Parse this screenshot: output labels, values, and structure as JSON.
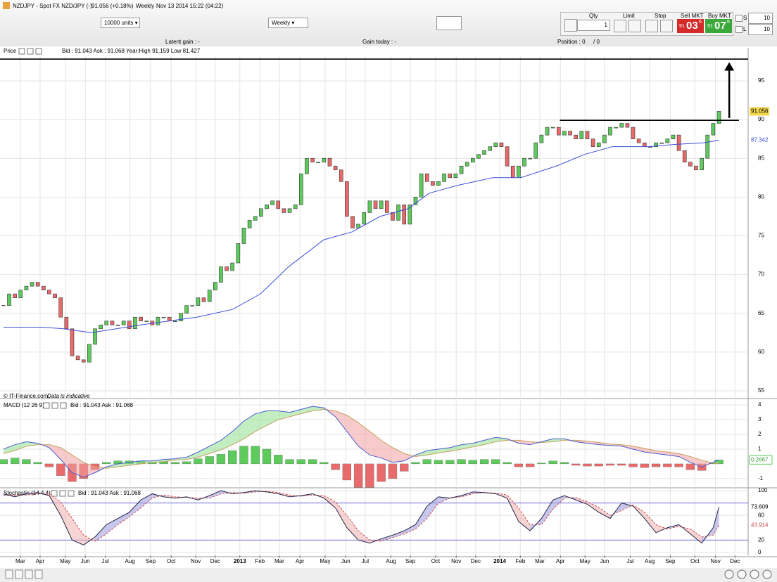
{
  "toolbar": {
    "symbol": "NZDJPY - Spot FX NZD/JPY (-)",
    "quote": "91.056 (+0.18%)",
    "period": "Weekly",
    "time": "Nov 13 2014 15:22 (04:22)",
    "units": "10000 units",
    "period_select": "Weekly",
    "qty_label": "Qty",
    "qty": "1",
    "limit": "Limit",
    "stop": "Stop",
    "sell": {
      "label": "Sell MKT",
      "big": "91",
      "pips": "03",
      "frac": "6"
    },
    "buy": {
      "label": "Buy MKT",
      "big": "91",
      "pips": "07",
      "frac": "6"
    },
    "s_label": "S",
    "s_value": "10",
    "l_label": "L",
    "l_value": "10"
  },
  "info_bar": {
    "latent": "Latent gain : -",
    "gain_today": "Gain today : -",
    "position": "Position : 0",
    "position_total": "/ 0"
  },
  "chart_data": [
    {
      "type": "candlestick",
      "title": "Price",
      "subtitle": "Bid : 91.043 Ask : 91.068 Year:High 91.159 Low 81.427",
      "source": "© IT-Finance.com",
      "note": "Data is indicative",
      "values": [
        66,
        67.5,
        67,
        68,
        68.5,
        69,
        68.5,
        68,
        67.5,
        67,
        64.5,
        63,
        59.5,
        59,
        58.7,
        61,
        63,
        63.5,
        64,
        63.5,
        63.5,
        64,
        63,
        64.5,
        64,
        64,
        63.5,
        64.5,
        64.5,
        64,
        64,
        65,
        66,
        66,
        67,
        66.5,
        68,
        69,
        71,
        70.5,
        71.5,
        74,
        76,
        77,
        77.5,
        78.5,
        79,
        79.5,
        78.5,
        78,
        78.5,
        79,
        83,
        85,
        84.5,
        84.5,
        85,
        84,
        83.5,
        82,
        77.5,
        76,
        76.5,
        78,
        79.5,
        78.5,
        79.5,
        78,
        77,
        79,
        76.5,
        79,
        80,
        83,
        82,
        81.5,
        82,
        83,
        82.5,
        83,
        84,
        84.5,
        85,
        85.5,
        86,
        86.5,
        87,
        86.5,
        84,
        82.5,
        84,
        85,
        85,
        87,
        88,
        89,
        89,
        88,
        88.5,
        88,
        87.5,
        88.5,
        87.5,
        86.5,
        87,
        88,
        89,
        89,
        89.5,
        89,
        87.5,
        87,
        86.5,
        86.5,
        87,
        87,
        87.5,
        88,
        86,
        84.5,
        84,
        83.5,
        85,
        88,
        89.5,
        91.056
      ],
      "last": 91.056,
      "up_color": "#5ccb5c",
      "down_color": "#e86a6a",
      "ma": {
        "color": "#3b4fd8",
        "x": [
          0,
          6.8,
          10.5,
          15.4,
          24,
          33.8,
          40,
          44.9,
          49.8,
          56,
          60.9,
          65.8,
          70.7,
          74.4,
          79.3,
          85.5,
          90.4,
          96.6,
          101.5,
          106.4,
          112.6,
          117.5,
          122.4,
          125
        ],
        "values": [
          63.2,
          63.2,
          63,
          62.5,
          63.5,
          64.5,
          65.5,
          67.5,
          71,
          74.5,
          75.5,
          77.5,
          78.5,
          80.5,
          81.5,
          82.5,
          82.5,
          84,
          85.5,
          86.5,
          86.5,
          86.8,
          87,
          87.342
        ]
      },
      "levels": [
        {
          "value": 89.9,
          "from": 97.2,
          "to": 128.5
        },
        {
          "value": 97.8,
          "from": -0.6,
          "to": 130.1
        }
      ],
      "arrow": {
        "x": 126.8,
        "from": 90.2,
        "to": 97.4
      },
      "ylim": [
        54.18,
        98.17
      ],
      "yticks": [
        55,
        60,
        65,
        70,
        75,
        80,
        85,
        90,
        95
      ],
      "grid": true
    },
    {
      "type": "macd",
      "title": "MACD (12 26 9)",
      "subtitle": "Bid : 91.043 Ask : 91.068",
      "x": [
        0,
        2,
        4,
        6,
        8,
        10,
        12,
        14,
        16,
        18,
        20,
        22,
        24,
        26,
        28,
        30,
        32,
        34,
        36,
        38,
        40,
        42,
        44,
        46,
        48,
        50,
        52,
        54,
        56,
        58,
        60,
        62,
        64,
        66,
        68,
        70,
        72,
        74,
        76,
        78,
        80,
        82,
        84,
        86,
        88,
        90,
        92,
        94,
        96,
        98,
        100,
        102,
        104,
        106,
        108,
        110,
        112,
        114,
        116,
        118,
        120,
        122,
        124,
        125
      ],
      "macd": {
        "color": "#4a5ad0",
        "values": [
          1.0,
          1.3,
          1.5,
          1.4,
          1.1,
          0.3,
          -0.6,
          -0.9,
          -0.6,
          -0.2,
          0.0,
          0.1,
          0.2,
          0.2,
          0.3,
          0.35,
          0.45,
          0.8,
          1.2,
          1.6,
          2.2,
          2.9,
          3.4,
          3.6,
          3.6,
          3.5,
          3.7,
          3.9,
          3.8,
          3.2,
          2.2,
          1.2,
          0.6,
          0.4,
          0.1,
          0.2,
          0.6,
          0.9,
          1.0,
          1.1,
          1.3,
          1.4,
          1.6,
          1.8,
          1.7,
          1.4,
          1.3,
          1.5,
          1.7,
          1.7,
          1.5,
          1.4,
          1.3,
          1.25,
          1.2,
          1.0,
          0.8,
          0.7,
          0.6,
          0.5,
          0.1,
          -0.2,
          0.1,
          0.2667
        ]
      },
      "signal": {
        "color": "#c9a060",
        "values": [
          0.7,
          0.9,
          1.2,
          1.3,
          1.3,
          1.1,
          0.6,
          0.1,
          -0.2,
          -0.3,
          -0.2,
          -0.1,
          0.0,
          0.1,
          0.15,
          0.25,
          0.3,
          0.45,
          0.7,
          0.95,
          1.3,
          1.7,
          2.2,
          2.6,
          3.0,
          3.2,
          3.4,
          3.6,
          3.7,
          3.6,
          3.3,
          2.8,
          2.2,
          1.6,
          1.1,
          0.7,
          0.5,
          0.6,
          0.75,
          0.85,
          1.0,
          1.15,
          1.3,
          1.5,
          1.6,
          1.6,
          1.5,
          1.45,
          1.5,
          1.6,
          1.6,
          1.55,
          1.45,
          1.35,
          1.3,
          1.2,
          1.05,
          0.9,
          0.8,
          0.7,
          0.5,
          0.25,
          0.05,
          0.0
        ]
      },
      "histogram": {
        "up_color": "#5ccb5c",
        "down_color": "#e86a6a",
        "values": [
          0.3,
          0.4,
          0.3,
          0.1,
          -0.2,
          -0.8,
          -1.2,
          -1.0,
          -0.4,
          0.1,
          0.2,
          0.2,
          0.2,
          0.1,
          0.15,
          0.1,
          0.15,
          0.35,
          0.5,
          0.65,
          0.9,
          1.2,
          1.2,
          1.0,
          0.6,
          0.3,
          0.3,
          0.3,
          0.1,
          -0.4,
          -1.1,
          -1.6,
          -1.6,
          -1.2,
          -1.0,
          -0.5,
          0.1,
          0.3,
          0.25,
          0.25,
          0.3,
          0.25,
          0.3,
          0.3,
          0.1,
          -0.2,
          -0.2,
          0.05,
          0.2,
          0.1,
          -0.1,
          -0.15,
          -0.15,
          -0.1,
          -0.1,
          -0.2,
          -0.25,
          -0.2,
          -0.2,
          -0.2,
          -0.4,
          -0.45,
          0.05,
          0.2667
        ]
      },
      "ylim": [
        -1.53,
        4.29
      ],
      "yticks": [
        -1,
        1,
        2,
        3,
        4
      ],
      "grid": true
    },
    {
      "type": "stochastic",
      "title": "Stochastic (14 4 4)",
      "subtitle": "Bid : 91.043 Ask : 91.068",
      "x": [
        0,
        2,
        4,
        6,
        8,
        10,
        12,
        14,
        16,
        18,
        20,
        22,
        24,
        26,
        28,
        30,
        32,
        34,
        36,
        38,
        40,
        42,
        44,
        46,
        48,
        50,
        52,
        54,
        56,
        58,
        60,
        62,
        64,
        66,
        68,
        70,
        72,
        74,
        76,
        78,
        80,
        82,
        84,
        86,
        88,
        90,
        92,
        94,
        96,
        98,
        100,
        102,
        104,
        106,
        108,
        110,
        112,
        114,
        116,
        118,
        120,
        122,
        124,
        125
      ],
      "k": {
        "color": "#222244",
        "values": [
          95,
          90,
          95,
          97,
          92,
          60,
          20,
          12,
          25,
          45,
          55,
          65,
          85,
          95,
          90,
          88,
          90,
          85,
          92,
          100,
          95,
          97,
          100,
          98,
          95,
          90,
          92,
          95,
          88,
          72,
          40,
          20,
          15,
          22,
          28,
          35,
          45,
          75,
          90,
          88,
          92,
          98,
          97,
          95,
          88,
          50,
          35,
          55,
          85,
          92,
          85,
          78,
          65,
          55,
          80,
          75,
          55,
          32,
          40,
          45,
          30,
          15,
          40,
          73.609
        ]
      },
      "d": {
        "color": "#d05050",
        "values": [
          92,
          93,
          93,
          95,
          95,
          82,
          55,
          28,
          18,
          30,
          45,
          58,
          72,
          88,
          93,
          90,
          89,
          88,
          88,
          95,
          97,
          96,
          98,
          99,
          97,
          93,
          91,
          93,
          92,
          82,
          60,
          35,
          20,
          18,
          24,
          30,
          38,
          55,
          80,
          88,
          90,
          95,
          97,
          96,
          93,
          72,
          45,
          45,
          70,
          88,
          89,
          82,
          73,
          60,
          68,
          77,
          65,
          45,
          38,
          42,
          38,
          25,
          28,
          43.914
        ]
      },
      "levels": [
        80,
        20
      ],
      "ylim": [
        -4.7,
        103.5
      ],
      "yticks": [
        0,
        20,
        60,
        100
      ],
      "grid": true,
      "xlim": [
        -0.6,
        130.1
      ],
      "xticks": [
        {
          "value": 2.95,
          "label": "Mar"
        },
        {
          "value": 6.4,
          "label": "Apr"
        },
        {
          "value": 10.8,
          "label": "May"
        },
        {
          "value": 14.3,
          "label": "Jun"
        },
        {
          "value": 17.8,
          "label": "Jul"
        },
        {
          "value": 22.1,
          "label": "Aug"
        },
        {
          "value": 25.7,
          "label": "Sep"
        },
        {
          "value": 29.3,
          "label": "Oct"
        },
        {
          "value": 33.6,
          "label": "Nov"
        },
        {
          "value": 37.0,
          "label": "Dec"
        },
        {
          "value": 41.3,
          "label": "2013"
        },
        {
          "value": 44.8,
          "label": "Feb"
        },
        {
          "value": 48.2,
          "label": "Mar"
        },
        {
          "value": 51.8,
          "label": "Apr"
        },
        {
          "value": 56.2,
          "label": "May"
        },
        {
          "value": 59.8,
          "label": "Jun"
        },
        {
          "value": 63.2,
          "label": "Jul"
        },
        {
          "value": 67.7,
          "label": "Aug"
        },
        {
          "value": 71.1,
          "label": "Sep"
        },
        {
          "value": 75.5,
          "label": "Oct"
        },
        {
          "value": 79.1,
          "label": "Nov"
        },
        {
          "value": 82.5,
          "label": "Dec"
        },
        {
          "value": 86.7,
          "label": "2014"
        },
        {
          "value": 90.3,
          "label": "Feb"
        },
        {
          "value": 93.7,
          "label": "Mar"
        },
        {
          "value": 97.3,
          "label": "Apr"
        },
        {
          "value": 101.6,
          "label": "May"
        },
        {
          "value": 105.0,
          "label": "Jun"
        },
        {
          "value": 109.5,
          "label": "Jul"
        },
        {
          "value": 112.9,
          "label": "Aug"
        },
        {
          "value": 116.5,
          "label": "Sep"
        },
        {
          "value": 120.8,
          "label": "Oct"
        },
        {
          "value": 124.4,
          "label": "Nov"
        },
        {
          "value": 127.8,
          "label": "Dec"
        }
      ]
    }
  ]
}
